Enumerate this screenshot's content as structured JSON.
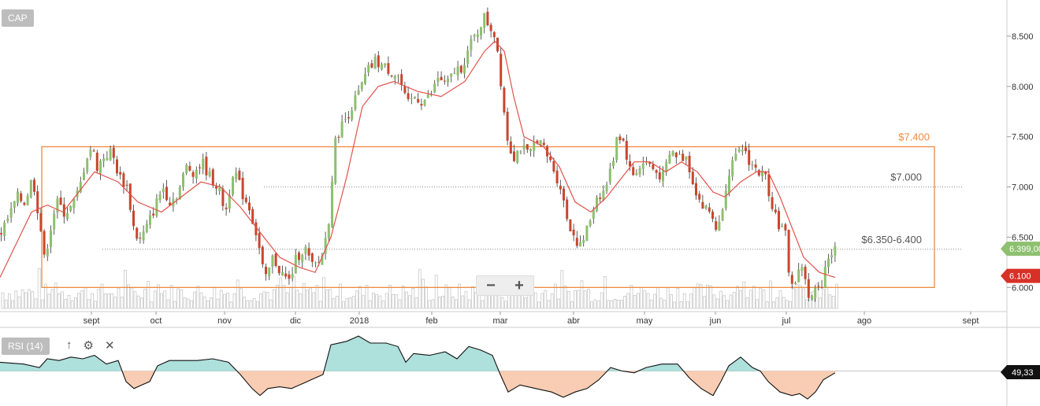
{
  "symbol": "CAP",
  "chart_data": {
    "type": "candlestick",
    "price_axis": {
      "ticks": [
        "8.500",
        "8.000",
        "7.500",
        "7.000",
        "6.500",
        "6.000"
      ],
      "values": [
        8.5,
        8.0,
        7.5,
        7.0,
        6.5,
        6.0
      ],
      "range": [
        5.76,
        8.86
      ]
    },
    "time_axis": {
      "labels": [
        "sept",
        "oct",
        "nov",
        "dic",
        "2018",
        "feb",
        "mar",
        "abr",
        "may",
        "jun",
        "jul",
        "ago",
        "sept"
      ]
    },
    "close_path": [
      [
        0,
        6.55
      ],
      [
        10,
        6.7
      ],
      [
        20,
        6.9
      ],
      [
        30,
        6.85
      ],
      [
        40,
        7.1
      ],
      [
        50,
        6.6
      ],
      [
        55,
        6.25
      ],
      [
        60,
        6.5
      ],
      [
        70,
        6.85
      ],
      [
        80,
        6.75
      ],
      [
        90,
        6.8
      ],
      [
        100,
        7.0
      ],
      [
        108,
        7.3
      ],
      [
        115,
        7.4
      ],
      [
        122,
        7.2
      ],
      [
        130,
        7.3
      ],
      [
        140,
        7.35
      ],
      [
        150,
        7.1
      ],
      [
        160,
        7.0
      ],
      [
        168,
        6.6
      ],
      [
        175,
        6.45
      ],
      [
        185,
        6.6
      ],
      [
        195,
        6.8
      ],
      [
        205,
        7.0
      ],
      [
        215,
        6.85
      ],
      [
        225,
        6.95
      ],
      [
        235,
        7.2
      ],
      [
        245,
        7.15
      ],
      [
        255,
        7.25
      ],
      [
        265,
        7.1
      ],
      [
        275,
        7.0
      ],
      [
        285,
        6.75
      ],
      [
        295,
        7.2
      ],
      [
        305,
        6.95
      ],
      [
        315,
        6.8
      ],
      [
        325,
        6.5
      ],
      [
        335,
        6.05
      ],
      [
        345,
        6.3
      ],
      [
        355,
        6.15
      ],
      [
        365,
        6.05
      ],
      [
        375,
        6.3
      ],
      [
        385,
        6.4
      ],
      [
        395,
        6.2
      ],
      [
        405,
        6.25
      ],
      [
        415,
        6.6
      ],
      [
        420,
        7.1
      ],
      [
        425,
        7.5
      ],
      [
        435,
        7.65
      ],
      [
        445,
        7.8
      ],
      [
        455,
        7.95
      ],
      [
        465,
        8.15
      ],
      [
        475,
        8.25
      ],
      [
        485,
        8.2
      ],
      [
        495,
        8.15
      ],
      [
        505,
        8.1
      ],
      [
        515,
        7.8
      ],
      [
        525,
        7.9
      ],
      [
        535,
        7.85
      ],
      [
        545,
        7.9
      ],
      [
        555,
        8.1
      ],
      [
        565,
        8.0
      ],
      [
        575,
        8.15
      ],
      [
        585,
        8.2
      ],
      [
        595,
        8.4
      ],
      [
        605,
        8.55
      ],
      [
        612,
        8.7
      ],
      [
        620,
        8.6
      ],
      [
        628,
        8.5
      ],
      [
        635,
        8.0
      ],
      [
        642,
        7.5
      ],
      [
        650,
        7.3
      ],
      [
        660,
        7.4
      ],
      [
        670,
        7.3
      ],
      [
        680,
        7.5
      ],
      [
        690,
        7.35
      ],
      [
        700,
        7.2
      ],
      [
        710,
        7.0
      ],
      [
        718,
        6.7
      ],
      [
        725,
        6.55
      ],
      [
        735,
        6.4
      ],
      [
        745,
        6.6
      ],
      [
        755,
        6.9
      ],
      [
        765,
        6.95
      ],
      [
        775,
        7.2
      ],
      [
        782,
        7.55
      ],
      [
        790,
        7.45
      ],
      [
        800,
        7.1
      ],
      [
        810,
        7.2
      ],
      [
        820,
        7.25
      ],
      [
        830,
        7.15
      ],
      [
        840,
        7.1
      ],
      [
        850,
        7.35
      ],
      [
        860,
        7.3
      ],
      [
        870,
        7.3
      ],
      [
        880,
        7.0
      ],
      [
        890,
        6.8
      ],
      [
        900,
        6.75
      ],
      [
        910,
        6.55
      ],
      [
        918,
        6.95
      ],
      [
        925,
        7.2
      ],
      [
        935,
        7.3
      ],
      [
        942,
        7.4
      ],
      [
        950,
        7.25
      ],
      [
        960,
        7.15
      ],
      [
        970,
        7.1
      ],
      [
        978,
        6.85
      ],
      [
        988,
        6.6
      ],
      [
        995,
        6.55
      ],
      [
        1002,
        6.0
      ],
      [
        1010,
        6.1
      ],
      [
        1018,
        6.25
      ],
      [
        1025,
        5.85
      ],
      [
        1032,
        5.95
      ],
      [
        1040,
        6.0
      ],
      [
        1048,
        6.3
      ],
      [
        1055,
        6.35
      ],
      [
        1060,
        6.4
      ]
    ],
    "ma_path": [
      [
        0,
        6.1
      ],
      [
        40,
        6.75
      ],
      [
        60,
        6.82
      ],
      [
        80,
        6.75
      ],
      [
        100,
        6.95
      ],
      [
        120,
        7.15
      ],
      [
        150,
        7.05
      ],
      [
        175,
        6.85
      ],
      [
        205,
        6.75
      ],
      [
        230,
        6.9
      ],
      [
        255,
        7.05
      ],
      [
        280,
        7.0
      ],
      [
        305,
        6.8
      ],
      [
        330,
        6.55
      ],
      [
        355,
        6.3
      ],
      [
        380,
        6.2
      ],
      [
        400,
        6.15
      ],
      [
        420,
        6.5
      ],
      [
        440,
        7.1
      ],
      [
        460,
        7.8
      ],
      [
        480,
        8.0
      ],
      [
        500,
        8.05
      ],
      [
        530,
        7.95
      ],
      [
        560,
        7.9
      ],
      [
        590,
        8.05
      ],
      [
        615,
        8.35
      ],
      [
        628,
        8.45
      ],
      [
        640,
        8.35
      ],
      [
        652,
        7.9
      ],
      [
        665,
        7.5
      ],
      [
        690,
        7.4
      ],
      [
        710,
        7.2
      ],
      [
        730,
        6.85
      ],
      [
        750,
        6.75
      ],
      [
        770,
        6.9
      ],
      [
        790,
        7.1
      ],
      [
        805,
        7.25
      ],
      [
        825,
        7.25
      ],
      [
        845,
        7.15
      ],
      [
        865,
        7.25
      ],
      [
        885,
        7.15
      ],
      [
        905,
        6.95
      ],
      [
        920,
        6.9
      ],
      [
        940,
        7.05
      ],
      [
        960,
        7.15
      ],
      [
        975,
        7.15
      ],
      [
        990,
        6.9
      ],
      [
        1005,
        6.6
      ],
      [
        1020,
        6.3
      ],
      [
        1040,
        6.15
      ],
      [
        1060,
        6.1
      ]
    ],
    "range_box": {
      "top": 7.4,
      "bottom": 6.0,
      "label": "$7.400"
    },
    "levels": [
      {
        "value": 7.0,
        "label": "$7.000"
      },
      {
        "value": 6.38,
        "label": "$6.350-6.400"
      }
    ],
    "last_price": {
      "label": "6.399,00",
      "color": "#8dc06f"
    },
    "ma_price": {
      "label": "6.100",
      "color": "#d73027"
    },
    "rsi": {
      "label": "RSI (14)",
      "value_label": "49,33",
      "center": 50,
      "range": [
        30,
        75
      ],
      "path": [
        [
          0,
          55
        ],
        [
          30,
          54
        ],
        [
          50,
          52
        ],
        [
          60,
          57
        ],
        [
          75,
          56
        ],
        [
          90,
          58
        ],
        [
          105,
          57
        ],
        [
          120,
          59
        ],
        [
          135,
          54
        ],
        [
          150,
          56
        ],
        [
          160,
          44
        ],
        [
          170,
          40
        ],
        [
          180,
          42
        ],
        [
          190,
          44
        ],
        [
          200,
          53
        ],
        [
          215,
          56
        ],
        [
          230,
          56
        ],
        [
          250,
          56
        ],
        [
          270,
          57
        ],
        [
          290,
          55
        ],
        [
          305,
          48
        ],
        [
          320,
          40
        ],
        [
          330,
          36
        ],
        [
          340,
          40
        ],
        [
          355,
          41
        ],
        [
          370,
          40
        ],
        [
          385,
          43
        ],
        [
          400,
          46
        ],
        [
          410,
          48
        ],
        [
          420,
          65
        ],
        [
          440,
          67
        ],
        [
          455,
          70
        ],
        [
          470,
          66
        ],
        [
          490,
          66
        ],
        [
          505,
          64
        ],
        [
          515,
          55
        ],
        [
          525,
          60
        ],
        [
          545,
          59
        ],
        [
          565,
          61
        ],
        [
          580,
          57
        ],
        [
          595,
          64
        ],
        [
          610,
          62
        ],
        [
          625,
          59
        ],
        [
          635,
          48
        ],
        [
          645,
          38
        ],
        [
          660,
          42
        ],
        [
          680,
          40
        ],
        [
          700,
          38
        ],
        [
          715,
          35
        ],
        [
          730,
          38
        ],
        [
          745,
          40
        ],
        [
          760,
          45
        ],
        [
          775,
          52
        ],
        [
          790,
          50
        ],
        [
          805,
          49
        ],
        [
          820,
          52
        ],
        [
          840,
          54
        ],
        [
          860,
          54
        ],
        [
          875,
          46
        ],
        [
          890,
          40
        ],
        [
          905,
          36
        ],
        [
          915,
          44
        ],
        [
          925,
          53
        ],
        [
          940,
          58
        ],
        [
          955,
          52
        ],
        [
          965,
          50
        ],
        [
          975,
          44
        ],
        [
          990,
          38
        ],
        [
          1005,
          36
        ],
        [
          1015,
          37
        ],
        [
          1025,
          34
        ],
        [
          1035,
          38
        ],
        [
          1045,
          45
        ],
        [
          1060,
          49
        ]
      ]
    }
  },
  "toolbar": {
    "zoom_out": "−",
    "zoom_in": "+"
  },
  "rsi_tools": {
    "up": "↑",
    "settings": "⚙",
    "close": "✕"
  },
  "colors": {
    "up": "#8dc06f",
    "down": "#c8462e",
    "ma": "#e3524a",
    "box": "#f08a3c",
    "rsi_up": "#aee0dc",
    "rsi_down": "#f9cdb3"
  }
}
